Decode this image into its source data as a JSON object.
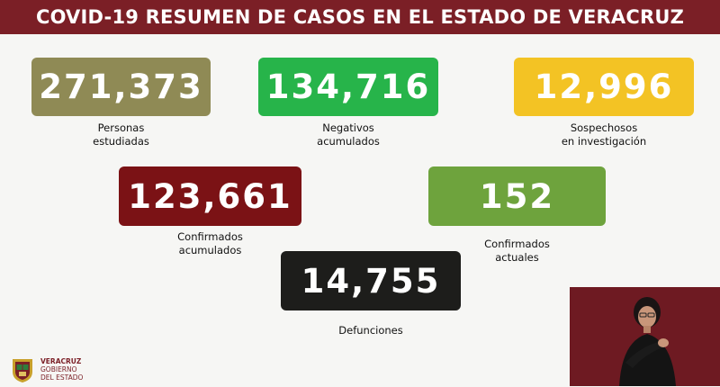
{
  "header": {
    "title": "COVID-19 RESUMEN DE CASOS EN EL ESTADO DE VERACRUZ"
  },
  "stats": [
    {
      "value": "271,373",
      "label": "Personas\nestudiadas",
      "color": "#8f8a55"
    },
    {
      "value": "134,716",
      "label": "Negativos\nacumulados",
      "color": "#27b44a"
    },
    {
      "value": "12,996",
      "label": "Sospechosos\nen investigación",
      "color": "#f3c324"
    },
    {
      "value": "123,661",
      "label": "Confirmados\nacumulados",
      "color": "#7b1215"
    },
    {
      "value": "152",
      "label": "Confirmados\nactuales",
      "color": "#6ea33d"
    },
    {
      "value": "14,755",
      "label": "Defunciones",
      "color": "#1d1d1b"
    }
  ],
  "footer": {
    "line1": "VERACRUZ",
    "line2": "GOBIERNO",
    "line3": "DEL ESTADO"
  }
}
